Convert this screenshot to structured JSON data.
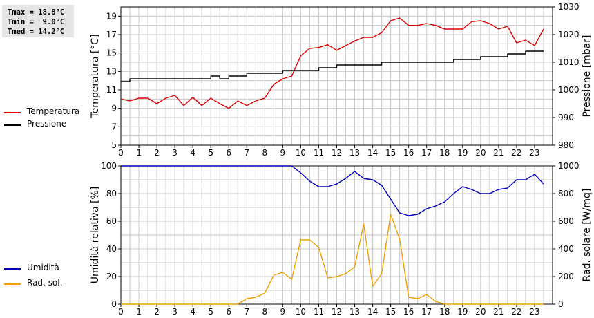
{
  "stats": {
    "tmax": "Tmax = 18.8°C",
    "tmin": "Tmin =  9.0°C",
    "tmed": "Tmed = 14.2°C"
  },
  "colors": {
    "temperature": "#dd0000",
    "pressure": "#000000",
    "humidity": "#0000bb",
    "solar": "#f0a000",
    "grid": "#c8c8c8"
  },
  "legend_top": [
    {
      "label": "Temperatura",
      "color": "#dd0000"
    },
    {
      "label": "Pressione",
      "color": "#000000"
    }
  ],
  "legend_bottom": [
    {
      "label": "Umidità",
      "color": "#0000bb"
    },
    {
      "label": "Rad. sol.",
      "color": "#f0a000"
    }
  ],
  "chart_data": [
    {
      "type": "line",
      "ylabel": "Temperatura [°C]",
      "y2label": "Pressione [mbar]",
      "xlim": [
        0,
        24
      ],
      "ylim": [
        5,
        20
      ],
      "y2lim": [
        980,
        1030
      ],
      "xticks": [
        0,
        1,
        2,
        3,
        4,
        5,
        6,
        7,
        8,
        9,
        10,
        11,
        12,
        13,
        14,
        15,
        16,
        17,
        18,
        19,
        20,
        21,
        22,
        23
      ],
      "yticks": [
        5,
        7,
        9,
        11,
        13,
        15,
        17,
        19
      ],
      "y2ticks": [
        980,
        990,
        1000,
        1010,
        1020,
        1030
      ],
      "grid": true,
      "series": [
        {
          "name": "Temperatura",
          "axis": "left",
          "color": "#dd0000",
          "x": [
            0,
            0.5,
            1,
            1.5,
            2,
            2.5,
            3,
            3.5,
            4,
            4.5,
            5,
            5.5,
            6,
            6.5,
            7,
            7.5,
            8,
            8.5,
            9,
            9.5,
            10,
            10.5,
            11,
            11.5,
            12,
            12.5,
            13,
            13.5,
            14,
            14.5,
            15,
            15.5,
            16,
            16.5,
            17,
            17.5,
            18,
            18.5,
            19,
            19.5,
            20,
            20.5,
            21,
            21.5,
            22,
            22.5,
            23,
            23.5
          ],
          "y": [
            10.0,
            9.8,
            10.1,
            10.1,
            9.5,
            10.1,
            10.4,
            9.3,
            10.2,
            9.3,
            10.1,
            9.5,
            9.0,
            9.8,
            9.3,
            9.8,
            10.1,
            11.6,
            12.2,
            12.5,
            14.7,
            15.5,
            15.6,
            15.9,
            15.3,
            15.8,
            16.3,
            16.7,
            16.7,
            17.2,
            18.5,
            18.8,
            18.0,
            18.0,
            18.2,
            18.0,
            17.6,
            17.6,
            17.6,
            18.4,
            18.5,
            18.2,
            17.6,
            17.9,
            16.1,
            16.4,
            15.8,
            17.6
          ]
        },
        {
          "name": "Pressione",
          "axis": "right",
          "color": "#000000",
          "x": [
            0,
            0.5,
            1,
            1.5,
            2,
            2.5,
            3,
            3.5,
            4,
            4.5,
            5,
            5.5,
            6,
            6.5,
            7,
            7.5,
            8,
            8.5,
            9,
            9.5,
            10,
            10.5,
            11,
            11.5,
            12,
            12.5,
            13,
            13.5,
            14,
            14.5,
            15,
            15.5,
            16,
            16.5,
            17,
            17.5,
            18,
            18.5,
            19,
            19.5,
            20,
            20.5,
            21,
            21.5,
            22,
            22.5,
            23,
            23.5
          ],
          "y": [
            1003,
            1004,
            1004,
            1004,
            1004,
            1004,
            1004,
            1004,
            1004,
            1004,
            1005,
            1004,
            1005,
            1005,
            1006,
            1006,
            1006,
            1006,
            1007,
            1007,
            1007,
            1007,
            1008,
            1008,
            1009,
            1009,
            1009,
            1009,
            1009,
            1010,
            1010,
            1010,
            1010,
            1010,
            1010,
            1010,
            1010,
            1011,
            1011,
            1011,
            1012,
            1012,
            1012,
            1013,
            1013,
            1014,
            1014,
            1014
          ]
        }
      ]
    },
    {
      "type": "line",
      "ylabel": "Umidità relativa [%]",
      "y2label": "Rad. solare [W/mq]",
      "xlim": [
        0,
        24
      ],
      "ylim": [
        0,
        100
      ],
      "y2lim": [
        0,
        1000
      ],
      "xticks": [
        0,
        1,
        2,
        3,
        4,
        5,
        6,
        7,
        8,
        9,
        10,
        11,
        12,
        13,
        14,
        15,
        16,
        17,
        18,
        19,
        20,
        21,
        22,
        23
      ],
      "yticks": [
        0,
        20,
        40,
        60,
        80,
        100
      ],
      "y2ticks": [
        0,
        200,
        400,
        600,
        800,
        1000
      ],
      "grid": true,
      "series": [
        {
          "name": "Umidità",
          "axis": "left",
          "color": "#0000bb",
          "x": [
            0,
            9.5,
            10,
            10.5,
            11,
            11.5,
            12,
            12.5,
            13,
            13.5,
            14,
            14.5,
            15,
            15.5,
            16,
            16.5,
            17,
            17.5,
            18,
            18.5,
            19,
            19.5,
            20,
            20.5,
            21,
            21.5,
            22,
            22.5,
            23,
            23.5
          ],
          "y": [
            100,
            100,
            95,
            89,
            85,
            85,
            87,
            91,
            96,
            91,
            90,
            86,
            76,
            66,
            64,
            65,
            69,
            71,
            74,
            80,
            85,
            83,
            80,
            80,
            83,
            84,
            90,
            90,
            94,
            87
          ]
        },
        {
          "name": "Rad. sol.",
          "axis": "right",
          "color": "#f0a000",
          "x": [
            0,
            6.5,
            7,
            7.5,
            8,
            8.5,
            9,
            9.5,
            10,
            10.5,
            11,
            11.5,
            12,
            12.5,
            13,
            13.5,
            14,
            14.5,
            15,
            15.5,
            16,
            16.5,
            17,
            17.5,
            18,
            23.5
          ],
          "y": [
            0,
            0,
            40,
            50,
            80,
            210,
            230,
            180,
            465,
            465,
            410,
            190,
            200,
            220,
            270,
            580,
            130,
            220,
            650,
            470,
            50,
            40,
            70,
            20,
            0,
            0
          ]
        }
      ]
    }
  ]
}
